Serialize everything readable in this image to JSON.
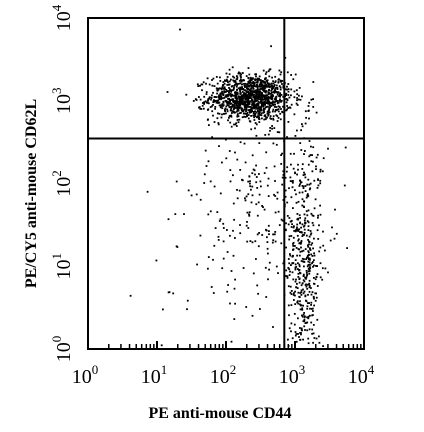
{
  "chart_data": {
    "type": "scatter",
    "title": "",
    "xlabel": "PE anti-mouse CD44",
    "ylabel": "PE/CY5 anti-mouse CD62L",
    "x_scale": "log",
    "y_scale": "log",
    "xlim": [
      1,
      10000
    ],
    "ylim": [
      1,
      10000
    ],
    "x_ticks": [
      {
        "base": "10",
        "exp": "0"
      },
      {
        "base": "10",
        "exp": "1"
      },
      {
        "base": "10",
        "exp": "2"
      },
      {
        "base": "10",
        "exp": "3"
      },
      {
        "base": "10",
        "exp": "4"
      }
    ],
    "y_ticks": [
      {
        "base": "10",
        "exp": "0"
      },
      {
        "base": "10",
        "exp": "1"
      },
      {
        "base": "10",
        "exp": "2"
      },
      {
        "base": "10",
        "exp": "3"
      },
      {
        "base": "10",
        "exp": "4"
      }
    ],
    "gate": {
      "x": 700,
      "y": 350
    },
    "grid": false,
    "legend": "none",
    "point_color": "#000000",
    "populations": [
      {
        "name": "",
        "log_x_center": 2.35,
        "log_y_center": 3.05,
        "log_x_sd": 0.3,
        "log_y_sd": 0.14,
        "count": 1200
      },
      {
        "name": "",
        "log_x_center": 3.12,
        "log_y_center": 1.0,
        "log_x_sd": 0.12,
        "log_y_sd": 0.75,
        "count": 450
      },
      {
        "name": "",
        "log_x_center": 2.6,
        "log_y_center": 1.8,
        "log_x_sd": 0.45,
        "log_y_sd": 0.65,
        "count": 260
      },
      {
        "name": "",
        "log_x_center": 2.0,
        "log_y_center": 1.4,
        "log_x_sd": 0.6,
        "log_y_sd": 0.9,
        "count": 60
      }
    ]
  }
}
